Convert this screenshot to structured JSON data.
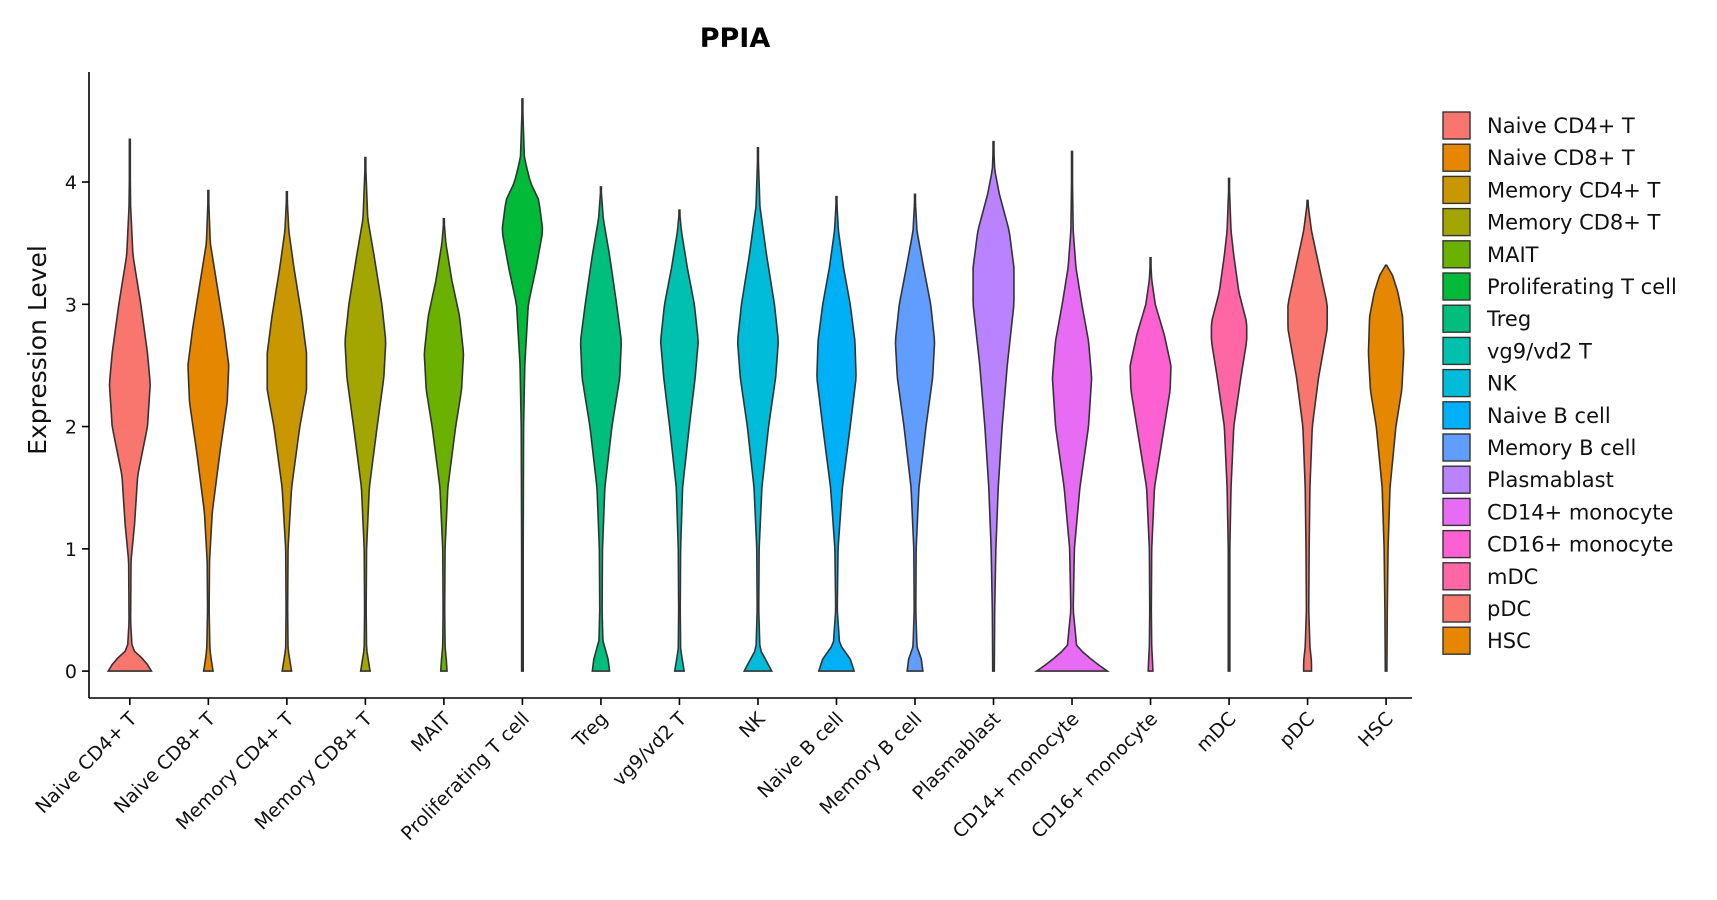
{
  "chart_data": {
    "type": "violin",
    "title": "PPIA",
    "xlabel": "",
    "ylabel": "Expression Level",
    "ylim": [
      -0.22,
      4.9
    ],
    "yticks": [
      0,
      1,
      2,
      3,
      4
    ],
    "legend_position": "right",
    "categories": [
      "Naive CD4+ T",
      "Naive CD8+ T",
      "Memory CD4+ T",
      "Memory CD8+ T",
      "MAIT",
      "Proliferating T cell",
      "Treg",
      "vg9/vd2 T",
      "NK",
      "Naive B cell",
      "Memory B cell",
      "Plasmablast",
      "CD14+ monocyte",
      "CD16+ monocyte",
      "mDC",
      "pDC",
      "HSC"
    ],
    "colors": [
      "#F8766D",
      "#E58700",
      "#C99800",
      "#A3A500",
      "#6BB100",
      "#00BA38",
      "#00BF7D",
      "#00C0AF",
      "#00BCD8",
      "#00B0F6",
      "#619CFF",
      "#B983FF",
      "#E76BF3",
      "#FD61D1",
      "#FF67A4",
      "#F8766D",
      "#E58700"
    ],
    "violins": [
      {
        "name": "Naive CD4+ T",
        "max": 4.35,
        "profile": [
          [
            0,
            0.55
          ],
          [
            0.08,
            0.4
          ],
          [
            0.18,
            0.06
          ],
          [
            0.4,
            0.02
          ],
          [
            0.9,
            0.03
          ],
          [
            1.2,
            0.12
          ],
          [
            1.6,
            0.2
          ],
          [
            2.0,
            0.45
          ],
          [
            2.35,
            0.52
          ],
          [
            2.6,
            0.45
          ],
          [
            3.0,
            0.28
          ],
          [
            3.4,
            0.08
          ],
          [
            3.8,
            0.02
          ],
          [
            4.35,
            0
          ]
        ]
      },
      {
        "name": "Naive CD8+ T",
        "max": 3.93,
        "profile": [
          [
            0,
            0.12
          ],
          [
            0.08,
            0.08
          ],
          [
            0.18,
            0.04
          ],
          [
            0.5,
            0.02
          ],
          [
            0.9,
            0.03
          ],
          [
            1.3,
            0.1
          ],
          [
            1.8,
            0.3
          ],
          [
            2.2,
            0.48
          ],
          [
            2.5,
            0.52
          ],
          [
            2.8,
            0.4
          ],
          [
            3.2,
            0.2
          ],
          [
            3.5,
            0.05
          ],
          [
            3.93,
            0
          ]
        ]
      },
      {
        "name": "Memory CD4+ T",
        "max": 3.92,
        "profile": [
          [
            0,
            0.12
          ],
          [
            0.08,
            0.08
          ],
          [
            0.18,
            0.03
          ],
          [
            0.5,
            0.02
          ],
          [
            1.0,
            0.03
          ],
          [
            1.5,
            0.12
          ],
          [
            2.0,
            0.33
          ],
          [
            2.3,
            0.5
          ],
          [
            2.6,
            0.5
          ],
          [
            2.9,
            0.38
          ],
          [
            3.3,
            0.18
          ],
          [
            3.6,
            0.05
          ],
          [
            3.92,
            0
          ]
        ]
      },
      {
        "name": "Memory CD8+ T",
        "max": 4.2,
        "profile": [
          [
            0,
            0.12
          ],
          [
            0.08,
            0.08
          ],
          [
            0.18,
            0.03
          ],
          [
            0.5,
            0.02
          ],
          [
            1.0,
            0.03
          ],
          [
            1.5,
            0.1
          ],
          [
            2.0,
            0.3
          ],
          [
            2.4,
            0.47
          ],
          [
            2.7,
            0.52
          ],
          [
            3.0,
            0.42
          ],
          [
            3.4,
            0.22
          ],
          [
            3.7,
            0.06
          ],
          [
            4.2,
            0
          ]
        ]
      },
      {
        "name": "MAIT",
        "max": 3.7,
        "profile": [
          [
            0,
            0.08
          ],
          [
            0.1,
            0.06
          ],
          [
            0.2,
            0.03
          ],
          [
            0.5,
            0.02
          ],
          [
            1.0,
            0.03
          ],
          [
            1.5,
            0.1
          ],
          [
            2.0,
            0.3
          ],
          [
            2.3,
            0.45
          ],
          [
            2.6,
            0.5
          ],
          [
            2.9,
            0.4
          ],
          [
            3.2,
            0.2
          ],
          [
            3.5,
            0.05
          ],
          [
            3.7,
            0
          ]
        ]
      },
      {
        "name": "Proliferating T cell",
        "max": 4.68,
        "profile": [
          [
            0,
            0.02
          ],
          [
            1.0,
            0.02
          ],
          [
            2.0,
            0.03
          ],
          [
            2.5,
            0.06
          ],
          [
            3.0,
            0.15
          ],
          [
            3.3,
            0.35
          ],
          [
            3.6,
            0.52
          ],
          [
            3.85,
            0.42
          ],
          [
            4.0,
            0.2
          ],
          [
            4.2,
            0.05
          ],
          [
            4.68,
            0
          ]
        ]
      },
      {
        "name": "Treg",
        "max": 3.96,
        "profile": [
          [
            0,
            0.22
          ],
          [
            0.1,
            0.18
          ],
          [
            0.25,
            0.05
          ],
          [
            0.5,
            0.03
          ],
          [
            1.0,
            0.04
          ],
          [
            1.5,
            0.1
          ],
          [
            2.0,
            0.28
          ],
          [
            2.4,
            0.48
          ],
          [
            2.7,
            0.52
          ],
          [
            3.0,
            0.4
          ],
          [
            3.4,
            0.22
          ],
          [
            3.7,
            0.06
          ],
          [
            3.96,
            0
          ]
        ]
      },
      {
        "name": "vg9/vd2 T",
        "max": 3.77,
        "profile": [
          [
            0,
            0.12
          ],
          [
            0.08,
            0.08
          ],
          [
            0.18,
            0.03
          ],
          [
            0.5,
            0.02
          ],
          [
            1.0,
            0.03
          ],
          [
            1.5,
            0.08
          ],
          [
            2.0,
            0.25
          ],
          [
            2.4,
            0.4
          ],
          [
            2.7,
            0.48
          ],
          [
            3.0,
            0.38
          ],
          [
            3.3,
            0.2
          ],
          [
            3.6,
            0.05
          ],
          [
            3.77,
            0
          ]
        ]
      },
      {
        "name": "NK",
        "max": 4.28,
        "profile": [
          [
            0,
            0.35
          ],
          [
            0.08,
            0.22
          ],
          [
            0.18,
            0.05
          ],
          [
            0.5,
            0.02
          ],
          [
            1.0,
            0.03
          ],
          [
            1.5,
            0.1
          ],
          [
            2.0,
            0.27
          ],
          [
            2.4,
            0.45
          ],
          [
            2.7,
            0.52
          ],
          [
            3.0,
            0.42
          ],
          [
            3.4,
            0.22
          ],
          [
            3.8,
            0.05
          ],
          [
            4.28,
            0
          ]
        ]
      },
      {
        "name": "Naive B cell",
        "max": 3.88,
        "profile": [
          [
            0,
            0.45
          ],
          [
            0.1,
            0.35
          ],
          [
            0.22,
            0.08
          ],
          [
            0.5,
            0.02
          ],
          [
            1.0,
            0.04
          ],
          [
            1.5,
            0.15
          ],
          [
            2.0,
            0.35
          ],
          [
            2.4,
            0.5
          ],
          [
            2.7,
            0.47
          ],
          [
            3.0,
            0.35
          ],
          [
            3.3,
            0.18
          ],
          [
            3.6,
            0.05
          ],
          [
            3.88,
            0
          ]
        ]
      },
      {
        "name": "Memory B cell",
        "max": 3.9,
        "profile": [
          [
            0,
            0.2
          ],
          [
            0.1,
            0.16
          ],
          [
            0.2,
            0.05
          ],
          [
            0.5,
            0.02
          ],
          [
            1.0,
            0.03
          ],
          [
            1.5,
            0.1
          ],
          [
            2.0,
            0.28
          ],
          [
            2.4,
            0.45
          ],
          [
            2.7,
            0.5
          ],
          [
            3.0,
            0.4
          ],
          [
            3.3,
            0.22
          ],
          [
            3.6,
            0.05
          ],
          [
            3.9,
            0
          ]
        ]
      },
      {
        "name": "Plasmablast",
        "max": 4.33,
        "profile": [
          [
            0,
            0.02
          ],
          [
            0.5,
            0.03
          ],
          [
            1.0,
            0.06
          ],
          [
            1.5,
            0.12
          ],
          [
            2.0,
            0.22
          ],
          [
            2.5,
            0.35
          ],
          [
            3.0,
            0.52
          ],
          [
            3.3,
            0.52
          ],
          [
            3.6,
            0.4
          ],
          [
            3.9,
            0.15
          ],
          [
            4.1,
            0.03
          ],
          [
            4.33,
            0
          ]
        ]
      },
      {
        "name": "CD14+ monocyte",
        "max": 4.25,
        "profile": [
          [
            0,
            0.9
          ],
          [
            0.08,
            0.55
          ],
          [
            0.2,
            0.12
          ],
          [
            0.5,
            0.03
          ],
          [
            1.0,
            0.06
          ],
          [
            1.5,
            0.2
          ],
          [
            2.0,
            0.42
          ],
          [
            2.4,
            0.5
          ],
          [
            2.7,
            0.42
          ],
          [
            3.0,
            0.25
          ],
          [
            3.3,
            0.1
          ],
          [
            3.6,
            0.03
          ],
          [
            4.25,
            0
          ]
        ]
      },
      {
        "name": "CD16+ monocyte",
        "max": 3.38,
        "profile": [
          [
            0,
            0.06
          ],
          [
            0.08,
            0.05
          ],
          [
            0.2,
            0.03
          ],
          [
            0.5,
            0.02
          ],
          [
            1.0,
            0.03
          ],
          [
            1.5,
            0.1
          ],
          [
            2.0,
            0.35
          ],
          [
            2.3,
            0.5
          ],
          [
            2.5,
            0.52
          ],
          [
            2.75,
            0.35
          ],
          [
            3.0,
            0.12
          ],
          [
            3.2,
            0.03
          ],
          [
            3.38,
            0
          ]
        ]
      },
      {
        "name": "mDC",
        "max": 4.03,
        "profile": [
          [
            0,
            0.02
          ],
          [
            1.0,
            0.02
          ],
          [
            1.5,
            0.05
          ],
          [
            2.0,
            0.12
          ],
          [
            2.4,
            0.3
          ],
          [
            2.7,
            0.45
          ],
          [
            2.85,
            0.45
          ],
          [
            3.1,
            0.25
          ],
          [
            3.4,
            0.12
          ],
          [
            3.6,
            0.05
          ],
          [
            4.03,
            0
          ]
        ]
      },
      {
        "name": "pDC",
        "max": 3.85,
        "profile": [
          [
            0,
            0.1
          ],
          [
            0.08,
            0.1
          ],
          [
            0.2,
            0.06
          ],
          [
            0.5,
            0.03
          ],
          [
            1.0,
            0.04
          ],
          [
            1.5,
            0.06
          ],
          [
            2.0,
            0.12
          ],
          [
            2.4,
            0.28
          ],
          [
            2.8,
            0.5
          ],
          [
            3.0,
            0.5
          ],
          [
            3.3,
            0.3
          ],
          [
            3.6,
            0.1
          ],
          [
            3.85,
            0
          ]
        ]
      },
      {
        "name": "HSC",
        "max": 3.32,
        "profile": [
          [
            0,
            0.02
          ],
          [
            0.5,
            0.03
          ],
          [
            1.0,
            0.05
          ],
          [
            1.5,
            0.1
          ],
          [
            2.0,
            0.25
          ],
          [
            2.3,
            0.4
          ],
          [
            2.6,
            0.45
          ],
          [
            2.9,
            0.42
          ],
          [
            3.1,
            0.3
          ],
          [
            3.25,
            0.15
          ],
          [
            3.32,
            0
          ]
        ]
      }
    ]
  }
}
